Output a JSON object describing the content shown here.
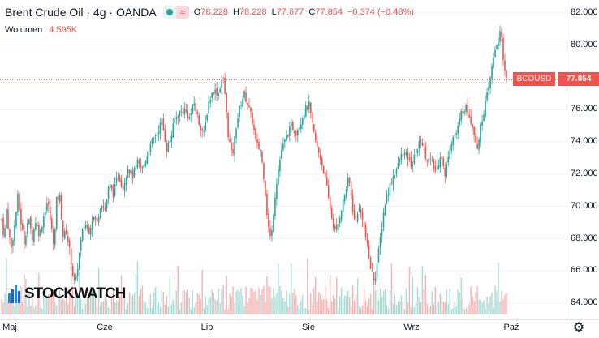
{
  "header": {
    "symbol": "Brent Crude Oil · 4g · OANDA",
    "wave_icon": "≈",
    "o_label": "O",
    "o_value": "78.228",
    "h_label": "H",
    "h_value": "78.228",
    "l_label": "L",
    "l_value": "77.677",
    "c_label": "C",
    "c_value": "77.854",
    "change": "−0.374 (−0.48%)"
  },
  "volume": {
    "label": "Wolumen",
    "value": "4.595K"
  },
  "last_price": {
    "symbol_tag": "BCOUSD",
    "price_tag": "77.854"
  },
  "logo": {
    "text": "STOCKWATCH"
  },
  "colors": {
    "up": "#26a69a",
    "down": "#ef5350",
    "price_line": "#ef5350",
    "grid": "#f0f3fa"
  },
  "chart_data": {
    "type": "candlestick",
    "ylim": [
      63,
      82.8
    ],
    "y_ticks": [
      "82.000",
      "80.000",
      "78.000",
      "76.000",
      "74.000",
      "72.000",
      "70.000",
      "68.000",
      "66.000",
      "64.000"
    ],
    "x_ticks": [
      "Maj",
      "Cze",
      "Lip",
      "Sie",
      "Wrz",
      "Paź"
    ],
    "last_price": 77.854,
    "series": [
      {
        "x": 0,
        "close": 69.2
      },
      {
        "x": 3,
        "close": 68.0
      },
      {
        "x": 6,
        "close": 69.8
      },
      {
        "x": 9,
        "close": 68.3
      },
      {
        "x": 12,
        "close": 67.4
      },
      {
        "x": 16,
        "close": 68.8
      },
      {
        "x": 20,
        "close": 70.6
      },
      {
        "x": 24,
        "close": 69.0
      },
      {
        "x": 28,
        "close": 67.8
      },
      {
        "x": 33,
        "close": 69.3
      },
      {
        "x": 38,
        "close": 68.1
      },
      {
        "x": 42,
        "close": 69.1
      },
      {
        "x": 47,
        "close": 68.2
      },
      {
        "x": 52,
        "close": 69.4
      },
      {
        "x": 57,
        "close": 70.4
      },
      {
        "x": 61,
        "close": 68.8
      },
      {
        "x": 65,
        "close": 67.6
      },
      {
        "x": 68,
        "close": 70.4
      },
      {
        "x": 72,
        "close": 70.6
      },
      {
        "x": 76,
        "close": 68.2
      },
      {
        "x": 80,
        "close": 68.4
      },
      {
        "x": 84,
        "close": 67.3
      },
      {
        "x": 88,
        "close": 65.8
      },
      {
        "x": 91,
        "close": 65.1
      },
      {
        "x": 95,
        "close": 66.7
      },
      {
        "x": 99,
        "close": 68.2
      },
      {
        "x": 103,
        "close": 69.0
      },
      {
        "x": 108,
        "close": 68.5
      },
      {
        "x": 113,
        "close": 69.4
      },
      {
        "x": 118,
        "close": 69.0
      },
      {
        "x": 123,
        "close": 70.3
      },
      {
        "x": 128,
        "close": 69.8
      },
      {
        "x": 133,
        "close": 71.4
      },
      {
        "x": 138,
        "close": 70.8
      },
      {
        "x": 144,
        "close": 72.0
      },
      {
        "x": 150,
        "close": 71.2
      },
      {
        "x": 156,
        "close": 72.4
      },
      {
        "x": 162,
        "close": 71.9
      },
      {
        "x": 168,
        "close": 72.7
      },
      {
        "x": 174,
        "close": 72.3
      },
      {
        "x": 180,
        "close": 73.2
      },
      {
        "x": 186,
        "close": 74.0
      },
      {
        "x": 192,
        "close": 74.5
      },
      {
        "x": 198,
        "close": 75.3
      },
      {
        "x": 204,
        "close": 73.6
      },
      {
        "x": 209,
        "close": 74.2
      },
      {
        "x": 214,
        "close": 75.4
      },
      {
        "x": 220,
        "close": 75.8
      },
      {
        "x": 226,
        "close": 76.0
      },
      {
        "x": 232,
        "close": 75.5
      },
      {
        "x": 238,
        "close": 76.4
      },
      {
        "x": 244,
        "close": 75.2
      },
      {
        "x": 250,
        "close": 74.5
      },
      {
        "x": 256,
        "close": 76.5
      },
      {
        "x": 262,
        "close": 77.2
      },
      {
        "x": 268,
        "close": 77.0
      },
      {
        "x": 273,
        "close": 78.1
      },
      {
        "x": 276,
        "close": 77.0
      },
      {
        "x": 280,
        "close": 74.5
      },
      {
        "x": 285,
        "close": 73.0
      },
      {
        "x": 290,
        "close": 75.0
      },
      {
        "x": 295,
        "close": 76.3
      },
      {
        "x": 300,
        "close": 77.0
      },
      {
        "x": 305,
        "close": 76.2
      },
      {
        "x": 310,
        "close": 75.3
      },
      {
        "x": 315,
        "close": 73.8
      },
      {
        "x": 320,
        "close": 73.5
      },
      {
        "x": 325,
        "close": 71.5
      },
      {
        "x": 329,
        "close": 69.0
      },
      {
        "x": 333,
        "close": 67.8
      },
      {
        "x": 337,
        "close": 70.3
      },
      {
        "x": 341,
        "close": 72.0
      },
      {
        "x": 346,
        "close": 73.5
      },
      {
        "x": 352,
        "close": 74.3
      },
      {
        "x": 358,
        "close": 75.0
      },
      {
        "x": 364,
        "close": 74.6
      },
      {
        "x": 370,
        "close": 75.3
      },
      {
        "x": 375,
        "close": 76.0
      },
      {
        "x": 380,
        "close": 76.3
      },
      {
        "x": 384,
        "close": 75.0
      },
      {
        "x": 389,
        "close": 73.8
      },
      {
        "x": 394,
        "close": 73.0
      },
      {
        "x": 399,
        "close": 72.0
      },
      {
        "x": 404,
        "close": 70.5
      },
      {
        "x": 409,
        "close": 69.0
      },
      {
        "x": 414,
        "close": 68.4
      },
      {
        "x": 419,
        "close": 69.7
      },
      {
        "x": 424,
        "close": 70.7
      },
      {
        "x": 429,
        "close": 71.8
      },
      {
        "x": 433,
        "close": 70.2
      },
      {
        "x": 437,
        "close": 68.8
      },
      {
        "x": 441,
        "close": 70.0
      },
      {
        "x": 446,
        "close": 69.3
      },
      {
        "x": 451,
        "close": 67.8
      },
      {
        "x": 456,
        "close": 66.2
      },
      {
        "x": 461,
        "close": 65.4
      },
      {
        "x": 465,
        "close": 66.8
      },
      {
        "x": 469,
        "close": 68.4
      },
      {
        "x": 473,
        "close": 70.0
      },
      {
        "x": 478,
        "close": 71.0
      },
      {
        "x": 483,
        "close": 71.8
      },
      {
        "x": 489,
        "close": 72.4
      },
      {
        "x": 495,
        "close": 73.3
      },
      {
        "x": 501,
        "close": 73.1
      },
      {
        "x": 507,
        "close": 72.5
      },
      {
        "x": 513,
        "close": 73.5
      },
      {
        "x": 519,
        "close": 74.2
      },
      {
        "x": 525,
        "close": 73.0
      },
      {
        "x": 531,
        "close": 72.8
      },
      {
        "x": 537,
        "close": 72.1
      },
      {
        "x": 543,
        "close": 73.4
      },
      {
        "x": 548,
        "close": 71.8
      },
      {
        "x": 553,
        "close": 73.6
      },
      {
        "x": 558,
        "close": 74.3
      },
      {
        "x": 563,
        "close": 74.6
      },
      {
        "x": 568,
        "close": 75.8
      },
      {
        "x": 573,
        "close": 76.2
      },
      {
        "x": 578,
        "close": 75.7
      },
      {
        "x": 583,
        "close": 74.8
      },
      {
        "x": 588,
        "close": 73.7
      },
      {
        "x": 593,
        "close": 75.2
      },
      {
        "x": 598,
        "close": 76.4
      },
      {
        "x": 602,
        "close": 77.3
      },
      {
        "x": 606,
        "close": 78.6
      },
      {
        "x": 610,
        "close": 79.8
      },
      {
        "x": 614,
        "close": 80.3
      },
      {
        "x": 617,
        "close": 80.9
      },
      {
        "x": 620,
        "close": 79.0
      },
      {
        "x": 623,
        "close": 78.2
      },
      {
        "x": 625,
        "close": 77.85
      }
    ]
  }
}
